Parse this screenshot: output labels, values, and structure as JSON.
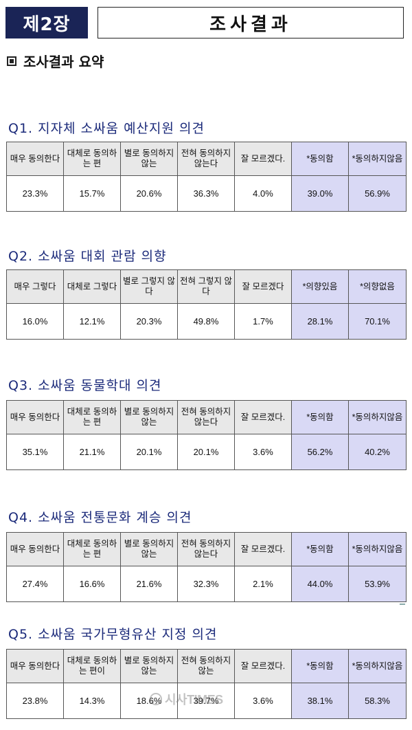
{
  "header": {
    "chapter": "제2장",
    "title": "조사결과"
  },
  "summary_heading": "조사결과 요약",
  "questions": [
    {
      "title": "Q1. 지자체 소싸움 예산지원 의견",
      "headers": [
        "매우 동의한다",
        "대체로 동의하는 편",
        "별로 동의하지 않는",
        "전혀 동의하지 않는다",
        "잘 모르겠다.",
        "*동의함",
        "*동의하지않음"
      ],
      "values": [
        "23.3%",
        "15.7%",
        "20.6%",
        "36.3%",
        "4.0%",
        "39.0%",
        "56.9%"
      ]
    },
    {
      "title": "Q2. 소싸움 대회 관람 의향",
      "headers": [
        "매우 그렇다",
        "대체로 그렇다",
        "별로 그렇지 않다",
        "전혀 그렇지 않다",
        "잘 모르겠다",
        "*의향있음",
        "*의향없음"
      ],
      "values": [
        "16.0%",
        "12.1%",
        "20.3%",
        "49.8%",
        "1.7%",
        "28.1%",
        "70.1%"
      ]
    },
    {
      "title": "Q3. 소싸움 동물학대 의견",
      "headers": [
        "매우 동의한다",
        "대체로 동의하는 편",
        "별로 동의하지 않는",
        "전혀 동의하지 않는다",
        "잘 모르겠다.",
        "*동의함",
        "*동의하지않음"
      ],
      "values": [
        "35.1%",
        "21.1%",
        "20.1%",
        "20.1%",
        "3.6%",
        "56.2%",
        "40.2%"
      ]
    },
    {
      "title": "Q4. 소싸움 전통문화 계승 의견",
      "headers": [
        "매우 동의한다",
        "대체로 동의하는 편",
        "별로 동의하지 않는",
        "전혀 동의하지 않는다",
        "잘 모르겠다.",
        "*동의함",
        "*동의하지않음"
      ],
      "values": [
        "27.4%",
        "16.6%",
        "21.6%",
        "32.3%",
        "2.1%",
        "44.0%",
        "53.9%"
      ]
    },
    {
      "title": "Q5. 소싸움 국가무형유산 지정 의견",
      "headers": [
        "매우 동의한다",
        "대체로 동의하는 편이",
        "별로 동의하지 않는",
        "전혀 동의하지 않는",
        "잘 모르겠다.",
        "*동의함",
        "*동의하지않음"
      ],
      "values": [
        "23.8%",
        "14.3%",
        "18.6%",
        "39.7%",
        "3.6%",
        "38.1%",
        "58.3%"
      ]
    }
  ],
  "watermark": "시사TIMES"
}
